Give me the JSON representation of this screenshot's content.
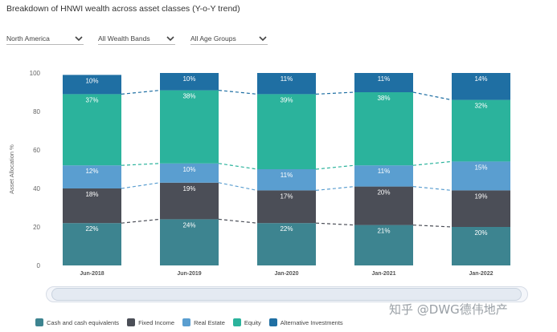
{
  "title": "Breakdown of HNWI wealth across asset classes (Y-o-Y trend)",
  "filters": [
    {
      "label": "North America"
    },
    {
      "label": "All Wealth Bands"
    },
    {
      "label": "All Age Groups"
    }
  ],
  "watermark": "知乎 @DWG德伟地产",
  "chart_data": {
    "type": "bar",
    "stacked": true,
    "ylabel": "Asset Allocation %",
    "ylim": [
      0,
      100
    ],
    "yticks": [
      0,
      20,
      40,
      60,
      80,
      100
    ],
    "categories": [
      "Jun-2018",
      "Jun-2019",
      "Jan-2020",
      "Jan-2021",
      "Jan-2022"
    ],
    "series": [
      {
        "name": "Cash and cash equivalents",
        "color": "#3d8490",
        "values": [
          22,
          24,
          22,
          21,
          20
        ]
      },
      {
        "name": "Fixed Income",
        "color": "#4b4e57",
        "values": [
          18,
          19,
          17,
          20,
          19
        ]
      },
      {
        "name": "Real Estate",
        "color": "#5a9ed0",
        "values": [
          12,
          10,
          11,
          11,
          15
        ]
      },
      {
        "name": "Equity",
        "color": "#2bb39c",
        "values": [
          37,
          38,
          39,
          38,
          32
        ]
      },
      {
        "name": "Alternative Investments",
        "color": "#1f6fa3",
        "values": [
          10,
          10,
          11,
          11,
          14
        ]
      }
    ],
    "legend_position": "bottom"
  }
}
